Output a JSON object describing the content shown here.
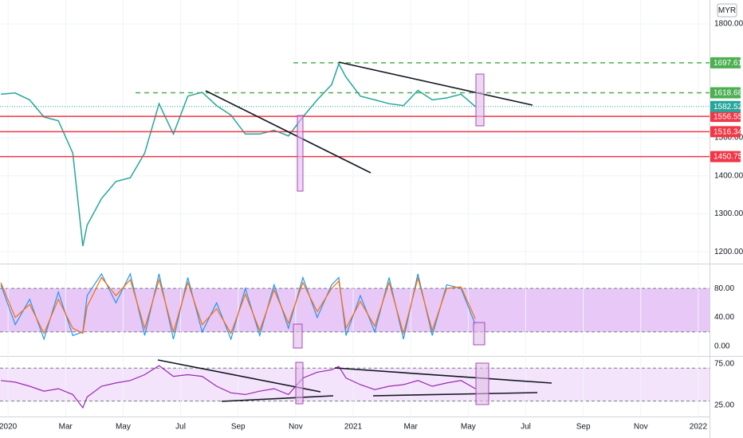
{
  "chart_data": [
    {
      "type": "line",
      "currency": "MYR",
      "x": [
        -0.25,
        0.25,
        0.75,
        1.25,
        1.75,
        2.25,
        2.6,
        2.75,
        3.25,
        3.75,
        4.25,
        4.75,
        5.25,
        5.75,
        6.25,
        6.75,
        7.25,
        7.75,
        8.25,
        8.75,
        9.25,
        9.75,
        10.25,
        10.75,
        11.25,
        11.5,
        11.75,
        12.25,
        12.75,
        13.25,
        13.75,
        14.25,
        14.75,
        15.25,
        15.75,
        16.25
      ],
      "values": [
        1615,
        1618,
        1600,
        1555,
        1545,
        1460,
        1215,
        1270,
        1340,
        1385,
        1395,
        1460,
        1590,
        1510,
        1610,
        1620,
        1585,
        1560,
        1510,
        1510,
        1520,
        1505,
        1555,
        1600,
        1640,
        1695,
        1660,
        1610,
        1600,
        1590,
        1585,
        1625,
        1600,
        1605,
        1615,
        1582.52
      ],
      "color": "#26a69a",
      "xlim": [
        -0.28,
        24.39
      ],
      "ylim": [
        1171,
        1863
      ],
      "yticks": [
        {
          "value": 1200,
          "label": "1200.00"
        },
        {
          "value": 1300,
          "label": "1300.00"
        },
        {
          "value": 1400,
          "label": "1400.00"
        },
        {
          "value": 1500,
          "label": "1500.00"
        },
        {
          "value": 1800,
          "label": "1800.00"
        }
      ],
      "levels": [
        {
          "value": 1697.61,
          "color": "#4caf50",
          "style": "dashed"
        },
        {
          "value": 1618.68,
          "color": "#4caf50",
          "style": "dashed"
        },
        {
          "value": 1556.55,
          "color": "#f23645",
          "style": "solid"
        },
        {
          "value": 1516.34,
          "color": "#f23645",
          "style": "solid"
        },
        {
          "value": 1450.75,
          "color": "#f23645",
          "style": "solid"
        }
      ],
      "grid": true
    },
    {
      "type": "line",
      "x": [
        -0.25,
        0.25,
        0.75,
        1.25,
        1.75,
        2.25,
        2.6,
        2.75,
        3.25,
        3.75,
        4.25,
        4.75,
        5.25,
        5.75,
        6.25,
        6.75,
        7.25,
        7.75,
        8.25,
        8.75,
        9.25,
        9.75,
        10.25,
        10.75,
        11.25,
        11.5,
        11.75,
        12.25,
        12.75,
        13.25,
        13.75,
        14.25,
        14.75,
        15.25,
        15.75,
        16.25
      ],
      "series": [
        {
          "color": "#2196f3",
          "values": [
            85,
            30,
            65,
            10,
            75,
            15,
            20,
            70,
            100,
            60,
            100,
            15,
            100,
            10,
            95,
            20,
            60,
            10,
            80,
            15,
            85,
            25,
            95,
            40,
            85,
            95,
            15,
            70,
            20,
            95,
            10,
            100,
            15,
            85,
            80,
            30
          ]
        },
        {
          "color": "#ff6d00",
          "values": [
            88,
            40,
            58,
            18,
            65,
            25,
            18,
            55,
            95,
            70,
            92,
            25,
            92,
            20,
            88,
            30,
            52,
            18,
            72,
            22,
            78,
            32,
            88,
            48,
            80,
            90,
            25,
            62,
            28,
            88,
            18,
            94,
            22,
            80,
            82,
            38
          ]
        }
      ],
      "xlim": [
        -0.28,
        24.39
      ],
      "ylim": [
        -11,
        112
      ],
      "yticks": [
        {
          "value": 0,
          "label": "0.00"
        },
        {
          "value": 40,
          "label": "40.00"
        },
        {
          "value": 80,
          "label": "80.00"
        }
      ],
      "band": [
        20,
        80
      ],
      "band_color": "#e7c8f7"
    },
    {
      "type": "line",
      "x": [
        -0.25,
        0.25,
        0.75,
        1.25,
        1.75,
        2.25,
        2.6,
        2.75,
        3.25,
        3.75,
        4.25,
        4.75,
        5.25,
        5.75,
        6.25,
        6.75,
        7.25,
        7.75,
        8.25,
        8.75,
        9.25,
        9.75,
        10.25,
        10.75,
        11.25,
        11.5,
        11.75,
        12.25,
        12.75,
        13.25,
        13.75,
        14.25,
        14.75,
        15.25,
        15.75,
        16.25
      ],
      "values": [
        55,
        53,
        48,
        42,
        45,
        38,
        22,
        35,
        48,
        52,
        55,
        62,
        73,
        60,
        62,
        60,
        48,
        40,
        38,
        42,
        45,
        38,
        58,
        65,
        68,
        72,
        58,
        50,
        44,
        48,
        50,
        55,
        48,
        52,
        55,
        45
      ],
      "color": "#9c27b0",
      "xlim": [
        -0.28,
        24.39
      ],
      "ylim": [
        12.3,
        82.8
      ],
      "yticks": [
        {
          "value": 25,
          "label": "25.00"
        },
        {
          "value": 75,
          "label": "75.00"
        }
      ],
      "xticks": [
        {
          "value": 0,
          "label": "2020"
        },
        {
          "value": 2,
          "label": "Mar"
        },
        {
          "value": 4,
          "label": "May"
        },
        {
          "value": 6,
          "label": "Jul"
        },
        {
          "value": 8,
          "label": "Sep"
        },
        {
          "value": 10,
          "label": "Nov"
        },
        {
          "value": 12,
          "label": "2021"
        },
        {
          "value": 14,
          "label": "Mar"
        },
        {
          "value": 16,
          "label": "May"
        },
        {
          "value": 18,
          "label": "Jul"
        },
        {
          "value": 20,
          "label": "Sep"
        },
        {
          "value": 22,
          "label": "Nov"
        },
        {
          "value": 24,
          "label": "2022"
        }
      ],
      "band": [
        30,
        70
      ],
      "band_color": "#f3e4fb"
    }
  ]
}
